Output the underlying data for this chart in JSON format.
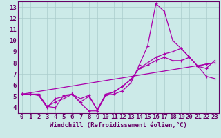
{
  "title": "",
  "xlabel": "Windchill (Refroidissement éolien,°C)",
  "ylabel": "",
  "bg_color": "#cceae8",
  "line_color": "#aa00aa",
  "grid_color": "#aacccc",
  "axis_color": "#660066",
  "text_color": "#660066",
  "xlim": [
    -0.5,
    23.5
  ],
  "ylim": [
    3.5,
    13.5
  ],
  "xticks": [
    0,
    1,
    2,
    3,
    4,
    5,
    6,
    7,
    8,
    9,
    10,
    11,
    12,
    13,
    14,
    15,
    16,
    17,
    18,
    19,
    20,
    21,
    22,
    23
  ],
  "yticks": [
    4,
    5,
    6,
    7,
    8,
    9,
    10,
    11,
    12,
    13
  ],
  "lines": [
    {
      "x": [
        0,
        1,
        2,
        3,
        4,
        5,
        6,
        7,
        8,
        9,
        10,
        11,
        12,
        13,
        14,
        15,
        16,
        17,
        18,
        19,
        20,
        21,
        22,
        23
      ],
      "y": [
        5.2,
        5.2,
        5.2,
        4.1,
        4.0,
        5.1,
        5.2,
        4.4,
        3.7,
        3.7,
        5.1,
        5.2,
        5.5,
        6.2,
        7.8,
        9.5,
        13.3,
        12.6,
        10.0,
        9.3,
        8.5,
        7.7,
        6.8,
        6.6
      ],
      "marker": true
    },
    {
      "x": [
        0,
        1,
        2,
        3,
        4,
        5,
        6,
        7,
        8,
        9,
        10,
        11,
        12,
        13,
        14,
        15,
        16,
        17,
        18,
        19,
        20,
        21,
        22,
        23
      ],
      "y": [
        5.2,
        5.2,
        5.1,
        4.0,
        4.8,
        5.0,
        5.2,
        4.5,
        5.0,
        3.8,
        5.1,
        5.4,
        5.9,
        6.5,
        7.5,
        7.8,
        8.2,
        8.5,
        8.2,
        8.2,
        8.5,
        7.7,
        7.9,
        8.0
      ],
      "marker": true
    },
    {
      "x": [
        0,
        23
      ],
      "y": [
        5.2,
        8.0
      ],
      "marker": false
    },
    {
      "x": [
        0,
        1,
        2,
        3,
        4,
        5,
        6,
        7,
        8,
        9,
        10,
        11,
        12,
        13,
        14,
        15,
        16,
        17,
        18,
        19,
        20,
        21,
        22,
        23
      ],
      "y": [
        5.2,
        5.2,
        5.1,
        4.1,
        4.5,
        4.8,
        5.2,
        4.8,
        5.1,
        3.8,
        5.2,
        5.4,
        5.9,
        6.5,
        7.5,
        8.0,
        8.5,
        8.8,
        9.0,
        9.3,
        8.5,
        7.7,
        7.5,
        8.2
      ],
      "marker": true
    }
  ],
  "marker_symbol": "+",
  "markersize": 3,
  "linewidth": 0.9,
  "fontsize_ticks": 6.5,
  "fontsize_xlabel": 6.5
}
